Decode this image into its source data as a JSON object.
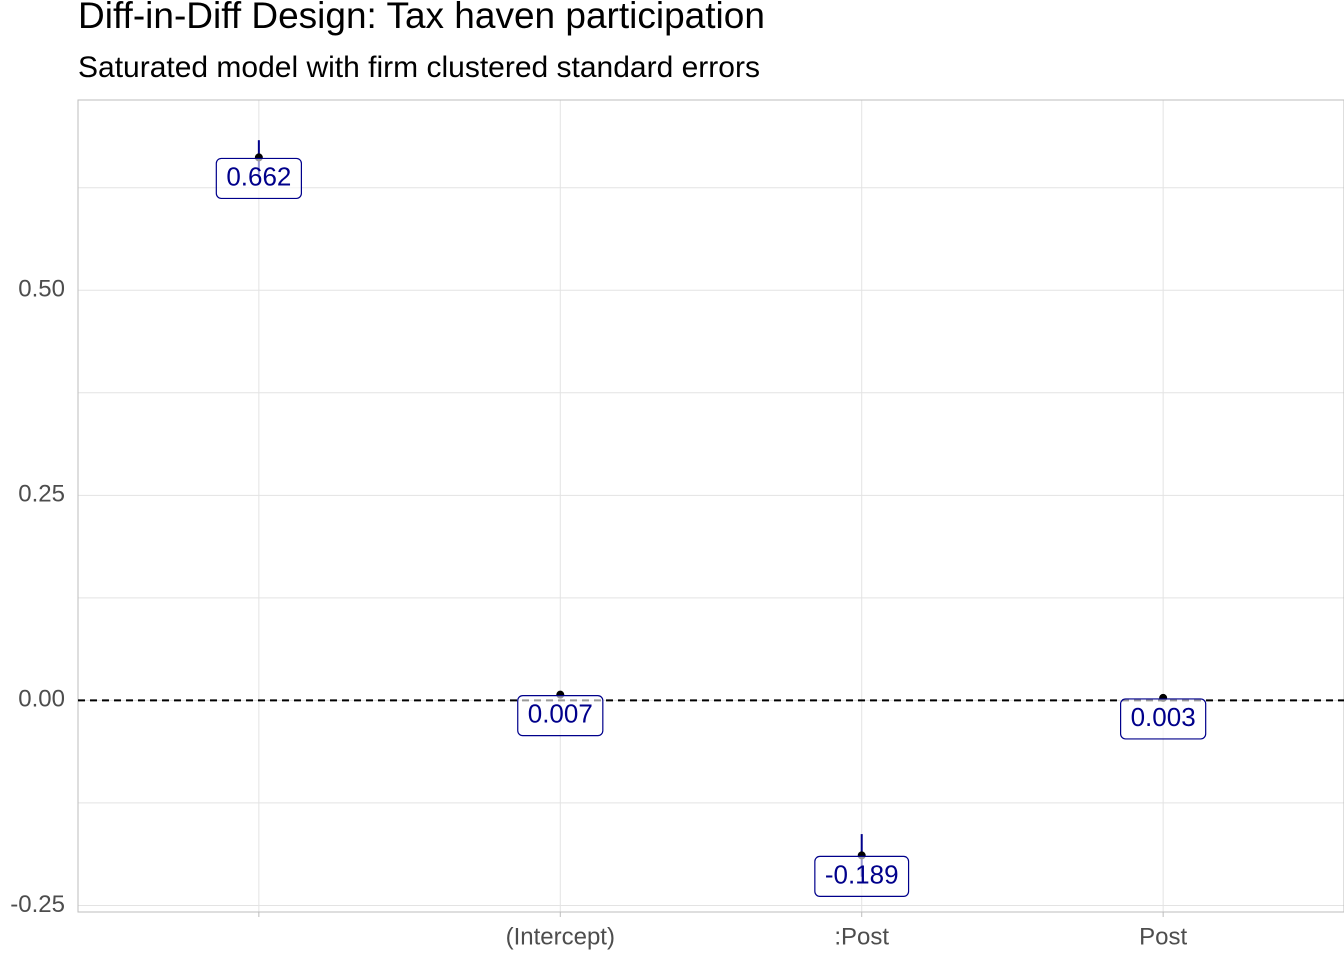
{
  "chart_data": {
    "type": "errorbar",
    "title": "Diff-in-Diff Design: Tax haven participation",
    "subtitle": "Saturated model with firm clustered standard errors",
    "categories": [
      null,
      "(Intercept)",
      ":Post",
      "Post"
    ],
    "values": [
      0.662,
      0.007,
      -0.189,
      0.003
    ],
    "errors": [
      0.021,
      0.003,
      0.026,
      0.003
    ],
    "color": "#00008b",
    "ylim": [
      -0.258,
      0.732
    ],
    "yticks": [
      -0.25,
      {
        "value": 0,
        "label": "0.00"
      },
      0.25,
      {
        "value": 0.5,
        "label": "0.50"
      }
    ],
    "hline": 0,
    "grid": true
  }
}
